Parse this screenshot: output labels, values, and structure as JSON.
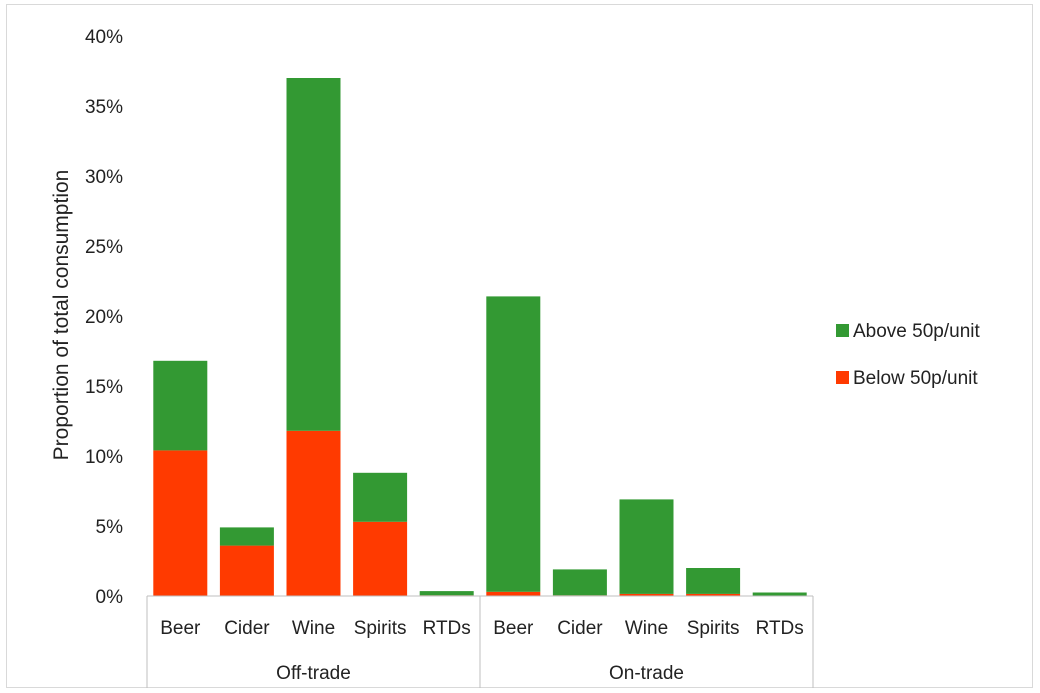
{
  "chart_data": {
    "type": "bar",
    "stacked": true,
    "ylabel": "Proportion of total consumption",
    "ylim": [
      0,
      40
    ],
    "yticks": [
      "0%",
      "5%",
      "10%",
      "15%",
      "20%",
      "25%",
      "30%",
      "35%",
      "40%"
    ],
    "groups": [
      {
        "name": "Off-trade",
        "categories": [
          "Beer",
          "Cider",
          "Wine",
          "Spirits",
          "RTDs"
        ]
      },
      {
        "name": "On-trade",
        "categories": [
          "Beer",
          "Cider",
          "Wine",
          "Spirits",
          "RTDs"
        ]
      }
    ],
    "series": [
      {
        "name": "Below 50p/unit",
        "color": "#ff3a00",
        "values": [
          10.4,
          3.6,
          11.8,
          5.3,
          0.05,
          0.3,
          0.05,
          0.15,
          0.15,
          0.0
        ]
      },
      {
        "name": "Above 50p/unit",
        "color": "#339933",
        "values": [
          6.4,
          1.3,
          25.2,
          3.5,
          0.3,
          21.1,
          1.85,
          6.75,
          1.85,
          0.25
        ]
      }
    ],
    "legend_position": "right",
    "grid": false
  }
}
